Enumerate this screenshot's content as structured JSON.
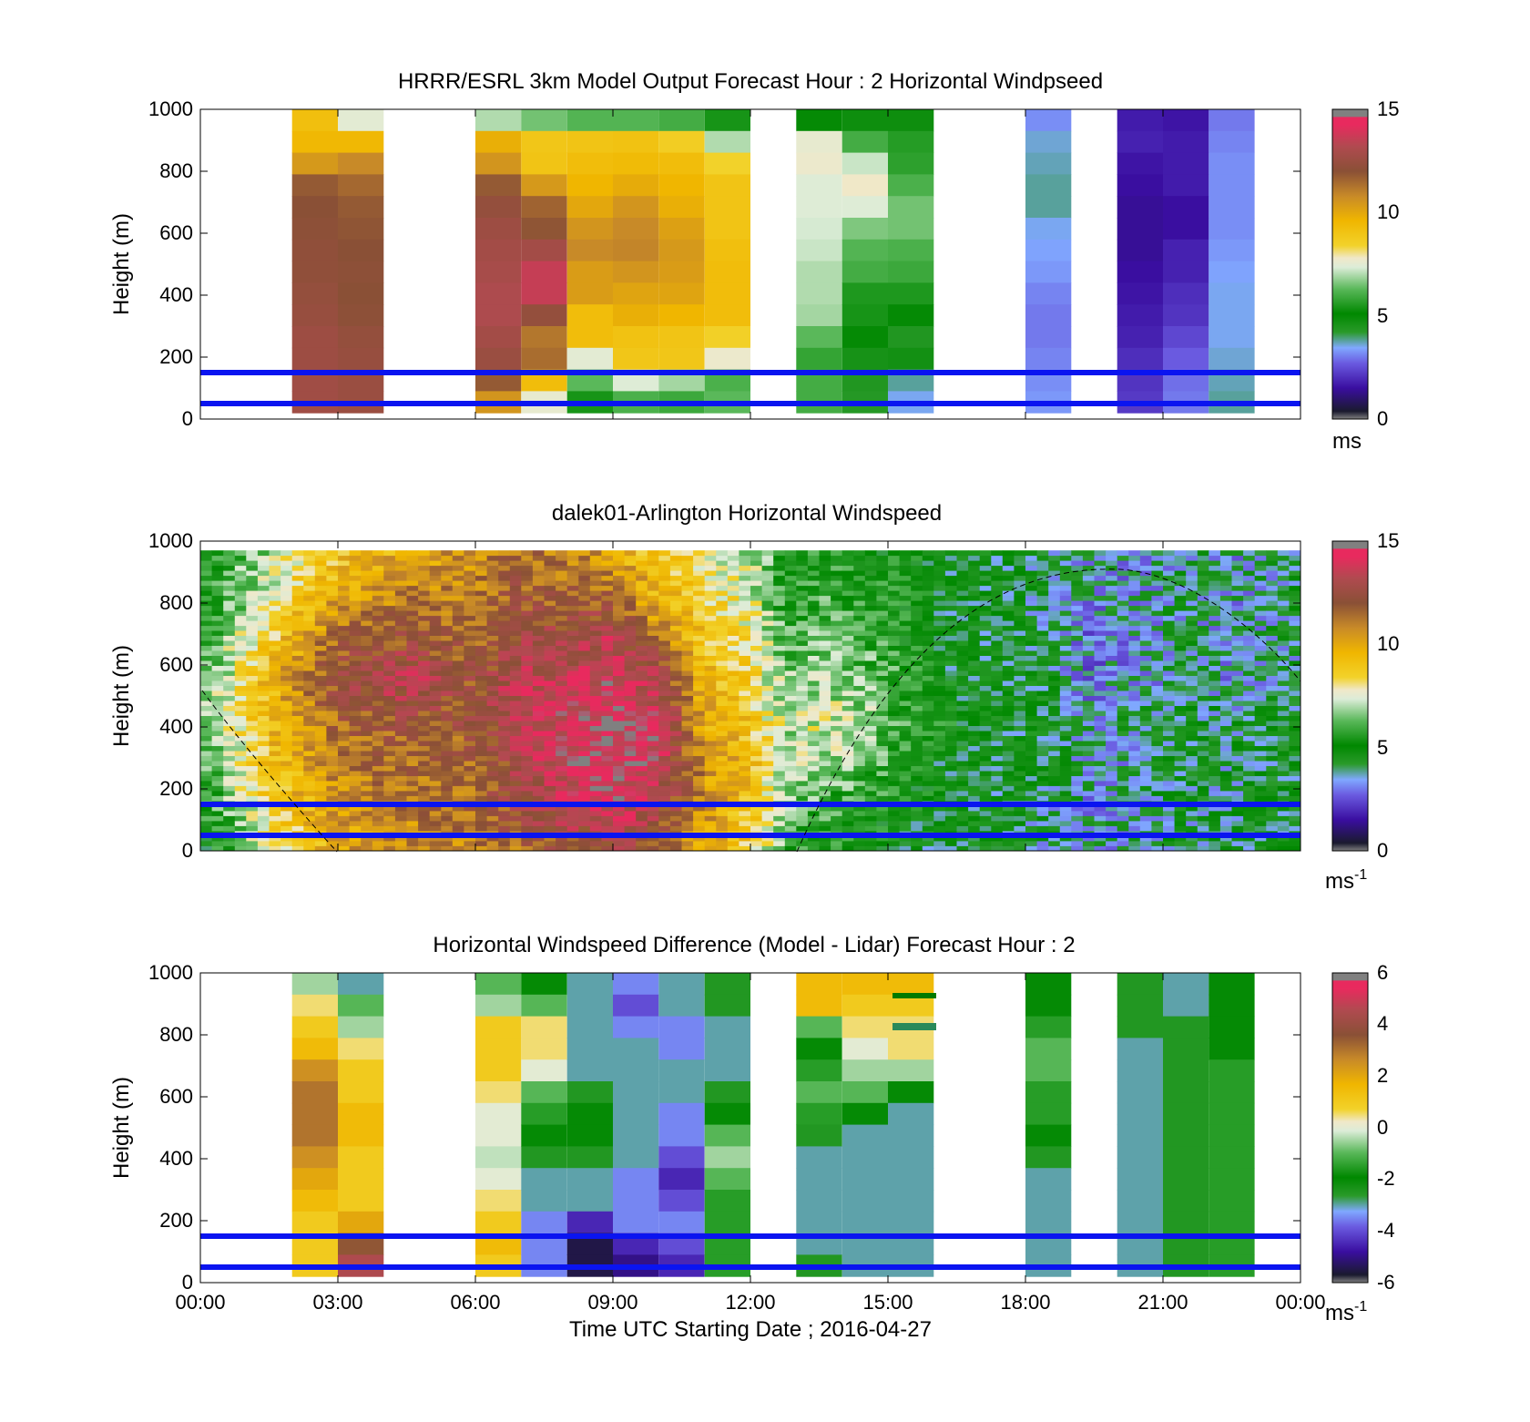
{
  "chart_data": [
    {
      "type": "heatmap",
      "title": "HRRR/ESRL 3km Model Output   Forecast Hour : 2 Horizontal Windpseed",
      "ylabel": "Height (m)",
      "ylim": [
        0,
        1000
      ],
      "yticks": [
        "0",
        "200",
        "400",
        "600",
        "800",
        "1000"
      ],
      "xlim_hours": [
        0,
        24
      ],
      "xticks": [
        "00:00",
        "03:00",
        "06:00",
        "09:00",
        "12:00",
        "15:00",
        "18:00",
        "21:00",
        "00:00"
      ],
      "colorbar": {
        "min": 0,
        "max": 15,
        "ticks": [
          "0",
          "5",
          "10",
          "15"
        ],
        "unit": "ms",
        "unit_sup": ""
      },
      "reference_lines_m": [
        50,
        150
      ],
      "columns_hours": [
        2.5,
        3.5,
        6.5,
        7.5,
        8.5,
        9.5,
        10.5,
        11.5,
        13.5,
        14.5,
        15.5,
        18.5,
        20.5,
        21.5,
        22.5
      ],
      "column_speeds": [
        [
          9.2,
          9.5,
          10.4,
          11.8,
          12.0,
          12.1,
          12.2,
          12.2,
          12.3,
          12.4,
          12.6,
          12.6,
          12.7,
          12.7
        ],
        [
          7.5,
          9.5,
          10.8,
          11.5,
          11.8,
          11.9,
          12.0,
          12.1,
          12.0,
          12.1,
          12.3,
          12.4,
          12.5,
          12.5
        ],
        [
          7.0,
          9.8,
          10.5,
          11.8,
          12.3,
          12.6,
          12.8,
          12.9,
          13.1,
          13.1,
          12.8,
          12.5,
          11.8,
          10.5
        ],
        [
          6.5,
          8.9,
          9.0,
          10.4,
          11.6,
          11.9,
          12.8,
          13.6,
          13.6,
          12.3,
          11.2,
          11.4,
          9.3,
          7.6
        ],
        [
          6.2,
          9.0,
          9.3,
          9.6,
          10.0,
          10.5,
          10.8,
          10.3,
          10.3,
          9.3,
          9.3,
          7.5,
          6.3,
          5.4
        ],
        [
          6.2,
          9.1,
          9.4,
          9.9,
          10.5,
          10.8,
          10.9,
          10.5,
          10.1,
          9.8,
          9.1,
          8.9,
          7.4,
          6.1
        ],
        [
          6.0,
          8.6,
          9.3,
          9.6,
          9.8,
          10.2,
          10.4,
          10.3,
          10.1,
          9.6,
          9.0,
          8.9,
          6.9,
          5.9
        ],
        [
          5.4,
          7.0,
          8.4,
          9.0,
          9.0,
          9.0,
          9.2,
          9.3,
          9.3,
          9.3,
          8.5,
          7.7,
          6.1,
          6.3
        ],
        [
          5.0,
          7.6,
          7.7,
          7.4,
          7.4,
          7.3,
          7.2,
          7.0,
          7.0,
          6.9,
          6.3,
          5.8,
          6.0,
          6.0
        ],
        [
          4.8,
          6.0,
          7.2,
          7.8,
          7.4,
          6.6,
          6.2,
          6.0,
          5.5,
          5.4,
          5.0,
          4.6,
          4.4,
          4.3
        ],
        [
          4.8,
          5.6,
          5.7,
          6.1,
          6.5,
          6.5,
          6.1,
          5.9,
          5.5,
          5.0,
          4.4,
          4.7,
          3.8,
          3.5
        ],
        [
          3.2,
          3.6,
          3.7,
          3.8,
          3.8,
          3.5,
          3.4,
          3.3,
          3.1,
          3.0,
          3.0,
          3.1,
          3.2,
          3.3
        ],
        [
          1.7,
          1.8,
          1.6,
          1.5,
          1.4,
          1.4,
          1.4,
          1.5,
          1.6,
          1.7,
          1.8,
          2.0,
          2.1,
          2.2
        ],
        [
          1.6,
          1.7,
          1.7,
          1.7,
          1.5,
          1.5,
          1.8,
          1.8,
          2.0,
          2.1,
          2.4,
          2.7,
          2.9,
          3.0
        ],
        [
          3.0,
          3.1,
          3.2,
          3.2,
          3.2,
          3.2,
          3.3,
          3.4,
          3.5,
          3.5,
          3.5,
          3.6,
          3.7,
          3.8
        ]
      ]
    },
    {
      "type": "heatmap",
      "title": "dalek01-Arlington  Horizontal Windspeed",
      "ylabel": "Height (m)",
      "ylim": [
        0,
        1000
      ],
      "yticks": [
        "0",
        "200",
        "400",
        "600",
        "800",
        "1000"
      ],
      "xlim_hours": [
        0,
        24
      ],
      "xticks": [],
      "colorbar": {
        "min": 0,
        "max": 15,
        "ticks": [
          "0",
          "5",
          "10",
          "15"
        ],
        "unit": "ms",
        "unit_sup": "-1"
      },
      "reference_lines_m": [
        50,
        150
      ],
      "lidar_profile_hours": [
        0.2,
        1.5,
        3.0,
        4.5,
        6.0,
        7.0,
        8.0,
        9.0,
        10.0,
        11.0,
        12.0,
        12.8,
        13.5,
        14.5,
        15.5,
        16.5,
        17.5,
        18.5,
        19.5,
        20.5,
        21.5,
        22.5,
        23.5
      ],
      "lidar_profile_speeds_low_to_high": [
        [
          5.0,
          5.5,
          6.0,
          6.5,
          6.5,
          6.0,
          5.5,
          5.5
        ],
        [
          7.5,
          8.5,
          9.0,
          9.5,
          9.5,
          8.5,
          7.5,
          7.0
        ],
        [
          10.0,
          10.5,
          11.0,
          11.5,
          12.5,
          11.5,
          10.0,
          9.0
        ],
        [
          10.5,
          11.0,
          11.5,
          12.0,
          13.5,
          12.0,
          11.0,
          10.0
        ],
        [
          11.0,
          11.5,
          11.5,
          12.0,
          12.0,
          11.5,
          11.0,
          10.5
        ],
        [
          11.5,
          12.5,
          13.0,
          13.5,
          13.5,
          12.5,
          12.0,
          11.5
        ],
        [
          12.0,
          13.5,
          14.0,
          14.0,
          13.5,
          12.5,
          11.5,
          11.0
        ],
        [
          12.5,
          14.0,
          14.5,
          14.5,
          14.0,
          13.5,
          11.5,
          10.0
        ],
        [
          11.5,
          13.0,
          14.0,
          14.0,
          13.0,
          11.0,
          9.5,
          9.0
        ],
        [
          10.0,
          10.5,
          10.5,
          10.0,
          9.5,
          9.0,
          8.5,
          8.0
        ],
        [
          8.5,
          9.0,
          9.5,
          9.0,
          8.5,
          8.0,
          7.5,
          7.0
        ],
        [
          6.0,
          6.5,
          7.0,
          7.0,
          6.5,
          6.0,
          5.5,
          5.5
        ],
        [
          5.5,
          6.0,
          7.0,
          7.5,
          7.0,
          6.5,
          6.0,
          5.5
        ],
        [
          5.0,
          5.5,
          6.5,
          7.0,
          6.5,
          6.0,
          5.5,
          5.0
        ],
        [
          4.5,
          5.0,
          5.0,
          5.5,
          5.5,
          5.0,
          5.0,
          5.0
        ],
        [
          4.5,
          4.5,
          4.5,
          5.0,
          4.5,
          4.5,
          4.5,
          4.5
        ],
        [
          4.5,
          4.5,
          4.5,
          4.5,
          4.5,
          4.5,
          4.5,
          4.5
        ],
        [
          4.0,
          4.0,
          4.5,
          4.5,
          4.5,
          4.0,
          4.0,
          4.0
        ],
        [
          3.5,
          3.5,
          3.5,
          3.5,
          3.0,
          3.0,
          3.5,
          3.5
        ],
        [
          4.0,
          4.0,
          4.0,
          4.0,
          3.5,
          3.5,
          3.5,
          3.5
        ],
        [
          4.0,
          4.0,
          4.5,
          4.5,
          4.0,
          4.0,
          4.0,
          4.0
        ],
        [
          4.0,
          4.0,
          4.0,
          4.0,
          3.5,
          3.5,
          3.5,
          3.5
        ],
        [
          4.5,
          4.5,
          4.5,
          4.5,
          4.0,
          4.0,
          4.0,
          4.0
        ]
      ]
    },
    {
      "type": "heatmap",
      "title": "Horizontal Windspeed Difference (Model - Lidar) Forecast Hour : 2",
      "ylabel": "Height (m)",
      "ylim": [
        0,
        1000
      ],
      "yticks": [
        "0",
        "200",
        "400",
        "600",
        "800",
        "1000"
      ],
      "xlim_hours": [
        0,
        24
      ],
      "xticks": [
        "00:00",
        "03:00",
        "06:00",
        "09:00",
        "12:00",
        "15:00",
        "18:00",
        "21:00",
        "00:00"
      ],
      "xlabel": "Time UTC  Starting Date ; 2016-04-27",
      "colorbar": {
        "min": -6,
        "max": 6,
        "ticks": [
          "-6",
          "-4",
          "-2",
          "0",
          "2",
          "4",
          "6"
        ],
        "unit": "ms",
        "unit_sup": "-1"
      },
      "reference_lines_m": [
        50,
        150
      ],
      "columns_hours": [
        2.5,
        3.5,
        6.5,
        7.5,
        8.5,
        9.5,
        10.5,
        11.5,
        13.5,
        14.5,
        15.5,
        18.5,
        20.5,
        21.5,
        22.5
      ],
      "column_differences": [
        [
          -0.5,
          0.5,
          1.0,
          1.5,
          2.5,
          3.0,
          3.0,
          3.0,
          2.5,
          2.0,
          1.5,
          1.0,
          1.0,
          1.0
        ],
        [
          -3.0,
          -1.0,
          -0.5,
          0.5,
          1.0,
          1.0,
          1.5,
          1.5,
          1.0,
          1.0,
          1.0,
          2.0,
          3.5,
          4.5
        ],
        [
          -1.0,
          -0.5,
          1.0,
          1.0,
          1.0,
          0.5,
          0.0,
          0.0,
          -0.3,
          0.0,
          0.5,
          1.0,
          1.5,
          1.0
        ],
        [
          -2.0,
          -1.0,
          0.5,
          0.5,
          0.0,
          -1.0,
          -1.5,
          -2.0,
          -2.5,
          -3.0,
          -3.0,
          -3.5,
          -3.5,
          -3.5
        ],
        [
          -3.0,
          -3.0,
          -3.0,
          -3.0,
          -3.0,
          -2.5,
          -2.0,
          -2.0,
          -2.5,
          -3.0,
          -3.0,
          -4.5,
          -5.5,
          -5.5
        ],
        [
          -3.5,
          -4.0,
          -3.5,
          -3.0,
          -3.0,
          -3.0,
          -3.0,
          -3.0,
          -3.0,
          -3.5,
          -3.5,
          -3.5,
          -4.5,
          -5.0
        ],
        [
          -3.0,
          -3.0,
          -3.5,
          -3.5,
          -3.0,
          -3.0,
          -3.5,
          -3.5,
          -4.0,
          -4.5,
          -4.0,
          -3.5,
          -4.0,
          -4.5
        ],
        [
          -2.5,
          -2.5,
          -3.0,
          -3.0,
          -3.0,
          -2.5,
          -2.0,
          -1.0,
          -0.5,
          -1.0,
          -1.5,
          -1.5,
          -1.5,
          -1.5
        ],
        [
          1.5,
          1.5,
          -1.0,
          -2.0,
          -1.5,
          -1.0,
          -1.5,
          -2.5,
          -3.0,
          -3.0,
          -3.0,
          -3.0,
          -3.0,
          -2.5
        ],
        [
          1.5,
          1.0,
          0.5,
          0.0,
          -0.5,
          -1.0,
          -2.0,
          -3.0,
          -3.0,
          -3.0,
          -3.0,
          -3.0,
          -3.0,
          -3.0
        ],
        [
          1.5,
          1.0,
          0.5,
          0.5,
          -0.5,
          -2.0,
          -3.0,
          -3.0,
          -3.0,
          -3.0,
          -3.0,
          -3.0,
          -3.0,
          -3.0
        ],
        [
          -2.0,
          -2.0,
          -1.5,
          -1.0,
          -1.0,
          -1.5,
          -1.5,
          -2.0,
          -2.5,
          -3.0,
          -3.0,
          -3.0,
          -3.0,
          -3.0
        ],
        [
          -2.5,
          -2.5,
          -2.5,
          -3.0,
          -3.0,
          -3.0,
          -3.0,
          -3.0,
          -3.0,
          -3.0,
          -3.0,
          -3.0,
          -3.0,
          -3.0
        ],
        [
          -3.0,
          -3.0,
          -2.5,
          -2.5,
          -2.5,
          -2.5,
          -2.5,
          -2.5,
          -2.5,
          -2.5,
          -2.5,
          -2.5,
          -2.5,
          -2.5
        ],
        [
          -2.0,
          -2.0,
          -2.0,
          -2.0,
          -1.5,
          -1.5,
          -1.5,
          -1.5,
          -1.5,
          -1.5,
          -1.5,
          -1.5,
          -1.5,
          -1.5
        ]
      ]
    }
  ]
}
